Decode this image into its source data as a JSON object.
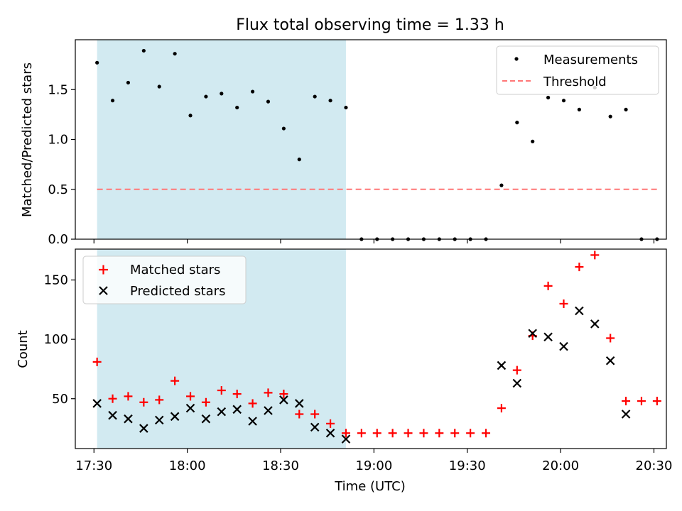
{
  "title": "Flux total observing time = 1.33 h",
  "chart_data": [
    {
      "type": "scatter",
      "ylabel": "Matched/Predicted stars",
      "ylim": [
        0,
        2.0
      ],
      "yticks": [
        0.0,
        0.5,
        1.0,
        1.5
      ],
      "ytick_labels": [
        "0.0",
        "0.5",
        "1.0",
        "1.5"
      ],
      "x_range": [
        "17:24",
        "20:34"
      ],
      "shaded_interval": {
        "start": "17:31",
        "end": "18:51",
        "color": "#add8e6"
      },
      "grid": false,
      "legend_position": "top-right",
      "series": [
        {
          "name": "Measurements",
          "kind": "points",
          "color": "#000000",
          "x": [
            "17:31",
            "17:36",
            "17:41",
            "17:46",
            "17:51",
            "17:56",
            "18:01",
            "18:06",
            "18:11",
            "18:16",
            "18:21",
            "18:26",
            "18:31",
            "18:36",
            "18:41",
            "18:46",
            "18:51",
            "18:56",
            "19:01",
            "19:06",
            "19:11",
            "19:16",
            "19:21",
            "19:26",
            "19:31",
            "19:36",
            "19:41",
            "19:46",
            "19:51",
            "19:56",
            "20:01",
            "20:06",
            "20:11",
            "20:16",
            "20:21",
            "20:26",
            "20:31"
          ],
          "y": [
            1.77,
            1.39,
            1.57,
            1.89,
            1.53,
            1.86,
            1.24,
            1.43,
            1.46,
            1.32,
            1.48,
            1.38,
            1.11,
            0.8,
            1.43,
            1.39,
            1.32,
            0.0,
            0.0,
            0.0,
            0.0,
            0.0,
            0.0,
            0.0,
            0.0,
            0.0,
            0.54,
            1.17,
            0.98,
            1.42,
            1.39,
            1.3,
            1.52,
            1.23,
            1.3,
            0.0,
            0.0
          ]
        },
        {
          "name": "Threshold",
          "kind": "dashed-line",
          "color": "#ff7777",
          "x": [
            "17:31",
            "20:31"
          ],
          "y": [
            0.5,
            0.5
          ]
        }
      ]
    },
    {
      "type": "scatter",
      "xlabel": "Time (UTC)",
      "ylabel": "Count",
      "ylim": [
        8,
        176
      ],
      "yticks": [
        50,
        100,
        150
      ],
      "ytick_labels": [
        "50",
        "100",
        "150"
      ],
      "xticks": [
        "17:30",
        "18:00",
        "18:30",
        "19:00",
        "19:30",
        "20:00",
        "20:30"
      ],
      "x_range": [
        "17:24",
        "20:34"
      ],
      "shaded_interval": {
        "start": "17:31",
        "end": "18:51",
        "color": "#add8e6"
      },
      "grid": false,
      "legend_position": "top-left",
      "series": [
        {
          "name": "Matched stars",
          "marker": "plus",
          "color": "#ff0000",
          "x": [
            "17:31",
            "17:36",
            "17:41",
            "17:46",
            "17:51",
            "17:56",
            "18:01",
            "18:06",
            "18:11",
            "18:16",
            "18:21",
            "18:26",
            "18:31",
            "18:36",
            "18:41",
            "18:46",
            "18:51",
            "18:56",
            "19:01",
            "19:06",
            "19:11",
            "19:16",
            "19:21",
            "19:26",
            "19:31",
            "19:36",
            "19:41",
            "19:46",
            "19:51",
            "19:56",
            "20:01",
            "20:06",
            "20:11",
            "20:16",
            "20:21",
            "20:26",
            "20:31"
          ],
          "y": [
            81,
            50,
            52,
            47,
            49,
            65,
            52,
            47,
            57,
            54,
            46,
            55,
            54,
            37,
            37,
            29,
            21,
            21,
            21,
            21,
            21,
            21,
            21,
            21,
            21,
            21,
            42,
            74,
            103,
            145,
            130,
            161,
            171,
            101,
            48,
            48,
            48
          ]
        },
        {
          "name": "Predicted stars",
          "marker": "x",
          "color": "#000000",
          "x": [
            "17:31",
            "17:36",
            "17:41",
            "17:46",
            "17:51",
            "17:56",
            "18:01",
            "18:06",
            "18:11",
            "18:16",
            "18:21",
            "18:26",
            "18:31",
            "18:36",
            "18:41",
            "18:46",
            "18:51",
            "19:41",
            "19:46",
            "19:51",
            "19:56",
            "20:01",
            "20:06",
            "20:11",
            "20:16",
            "20:21"
          ],
          "y": [
            46,
            36,
            33,
            25,
            32,
            35,
            42,
            33,
            39,
            41,
            31,
            40,
            49,
            46,
            26,
            21,
            16,
            78,
            63,
            105,
            102,
            94,
            124,
            113,
            82,
            37
          ]
        }
      ]
    }
  ]
}
